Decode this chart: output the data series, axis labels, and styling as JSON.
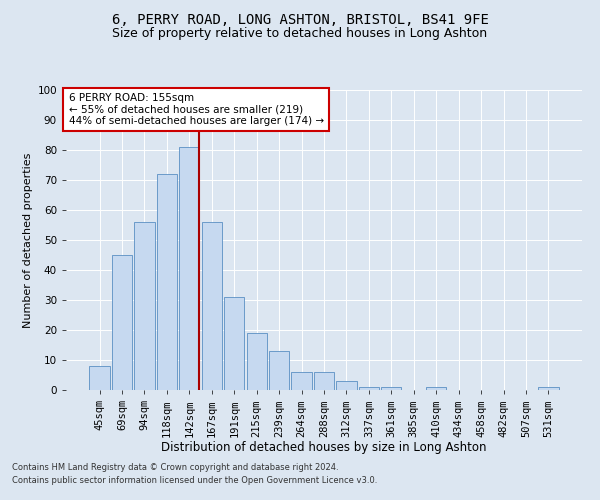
{
  "title1": "6, PERRY ROAD, LONG ASHTON, BRISTOL, BS41 9FE",
  "title2": "Size of property relative to detached houses in Long Ashton",
  "xlabel": "Distribution of detached houses by size in Long Ashton",
  "ylabel": "Number of detached properties",
  "footnote1": "Contains HM Land Registry data © Crown copyright and database right 2024.",
  "footnote2": "Contains public sector information licensed under the Open Government Licence v3.0.",
  "bar_labels": [
    "45sqm",
    "69sqm",
    "94sqm",
    "118sqm",
    "142sqm",
    "167sqm",
    "191sqm",
    "215sqm",
    "239sqm",
    "264sqm",
    "288sqm",
    "312sqm",
    "337sqm",
    "361sqm",
    "385sqm",
    "410sqm",
    "434sqm",
    "458sqm",
    "482sqm",
    "507sqm",
    "531sqm"
  ],
  "bar_values": [
    8,
    45,
    56,
    72,
    81,
    56,
    31,
    19,
    13,
    6,
    6,
    3,
    1,
    1,
    0,
    1,
    0,
    0,
    0,
    0,
    1
  ],
  "bar_color": "#c6d9f0",
  "bar_edge_color": "#5a8fc3",
  "bar_width": 0.9,
  "vline_index": 4,
  "vline_color": "#aa0000",
  "annotation_text": "6 PERRY ROAD: 155sqm\n← 55% of detached houses are smaller (219)\n44% of semi-detached houses are larger (174) →",
  "annotation_box_color": "#ffffff",
  "annotation_box_edge": "#cc0000",
  "ylim": [
    0,
    100
  ],
  "yticks": [
    0,
    10,
    20,
    30,
    40,
    50,
    60,
    70,
    80,
    90,
    100
  ],
  "bg_color": "#dce6f1",
  "plot_bg_color": "#dce6f1",
  "grid_color": "#ffffff",
  "title1_fontsize": 10,
  "title2_fontsize": 9,
  "xlabel_fontsize": 8.5,
  "ylabel_fontsize": 8,
  "tick_fontsize": 7.5,
  "annotation_fontsize": 7.5
}
